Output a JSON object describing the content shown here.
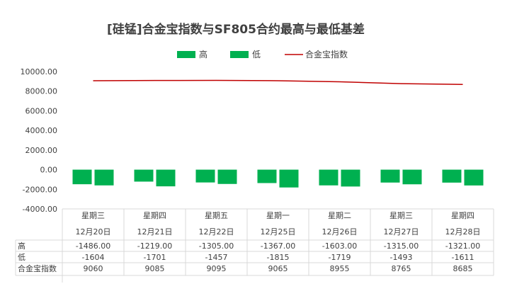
{
  "chart_data": {
    "type": "bar",
    "title": "[硅锰]合金宝指数与SF805合约最高与最低基差",
    "categories": [
      {
        "weekday": "星期三",
        "date": "12月20日"
      },
      {
        "weekday": "星期四",
        "date": "12月21日"
      },
      {
        "weekday": "星期五",
        "date": "12月22日"
      },
      {
        "weekday": "星期一",
        "date": "12月25日"
      },
      {
        "weekday": "星期二",
        "date": "12月26日"
      },
      {
        "weekday": "星期三",
        "date": "12月27日"
      },
      {
        "weekday": "星期四",
        "date": "12月28日"
      }
    ],
    "series": [
      {
        "name": "高",
        "kind": "bar",
        "color": "#00B050",
        "values": [
          -1486,
          -1219,
          -1305,
          -1367,
          -1603,
          -1315,
          -1321
        ],
        "labels": [
          "-1486.00",
          "-1219.00",
          "-1305.00",
          "-1367.00",
          "-1603.00",
          "-1315.00",
          "-1321.00"
        ]
      },
      {
        "name": "低",
        "kind": "bar",
        "color": "#00B050",
        "values": [
          -1604,
          -1701,
          -1457,
          -1815,
          -1719,
          -1493,
          -1611
        ],
        "labels": [
          "-1604",
          "-1701",
          "-1457",
          "-1815",
          "-1719",
          "-1493",
          "-1611"
        ]
      },
      {
        "name": "合金宝指数",
        "kind": "line",
        "color": "#C00000",
        "values": [
          9060,
          9085,
          9095,
          9065,
          8955,
          8765,
          8685
        ],
        "labels": [
          "9060",
          "9085",
          "9095",
          "9065",
          "8955",
          "8765",
          "8685"
        ]
      }
    ],
    "yticks": [
      "10000.00",
      "8000.00",
      "6000.00",
      "4000.00",
      "2000.00",
      "0.00",
      "-2000.00",
      "-4000.00"
    ],
    "ylim": [
      -4000,
      10000
    ],
    "grid": false,
    "legend_position": "top",
    "data_table": true
  }
}
